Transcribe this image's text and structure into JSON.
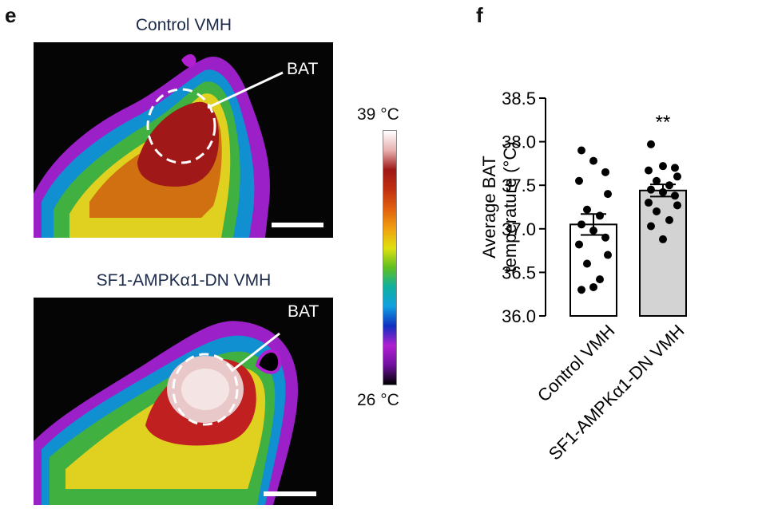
{
  "panel_e": {
    "letter": "e",
    "images": [
      {
        "title": "Control VMH",
        "annotation": "BAT"
      },
      {
        "title": "SF1-AMPKα1-DN VMH",
        "annotation": "BAT"
      }
    ],
    "colorbar": {
      "max_label": "39 °C",
      "min_label": "26 °C",
      "colors": [
        "#ffffff",
        "#e8b0b0",
        "#a01818",
        "#c03010",
        "#e06010",
        "#f0a010",
        "#e0e010",
        "#60c020",
        "#10b0a0",
        "#10a0e0",
        "#1030c0",
        "#b020d0",
        "#7010a0",
        "#000000"
      ]
    }
  },
  "panel_f": {
    "letter": "f",
    "significance": "**",
    "chart_data": {
      "type": "bar",
      "categories": [
        "Control VMH",
        "SF1-AMPKα1-DN VMH"
      ],
      "values": [
        37.05,
        37.44
      ],
      "sem": [
        0.12,
        0.07
      ],
      "bar_colors": [
        "#ffffff",
        "#d3d3d3"
      ],
      "points": [
        [
          37.9,
          37.78,
          37.65,
          37.55,
          37.4,
          37.22,
          37.15,
          37.05,
          36.98,
          36.9,
          36.82,
          36.7,
          36.6,
          36.42,
          36.3,
          36.33
        ],
        [
          37.97,
          37.72,
          37.7,
          37.67,
          37.6,
          37.55,
          37.5,
          37.45,
          37.42,
          37.38,
          37.3,
          37.27,
          37.2,
          37.1,
          37.03,
          36.88
        ]
      ],
      "ylabel": "Average BAT temperature (°C)",
      "ylim": [
        36.0,
        38.5
      ],
      "yticks": [
        "36.0",
        "36.5",
        "37.0",
        "37.5",
        "38.0",
        "38.5"
      ],
      "grid": false
    }
  }
}
